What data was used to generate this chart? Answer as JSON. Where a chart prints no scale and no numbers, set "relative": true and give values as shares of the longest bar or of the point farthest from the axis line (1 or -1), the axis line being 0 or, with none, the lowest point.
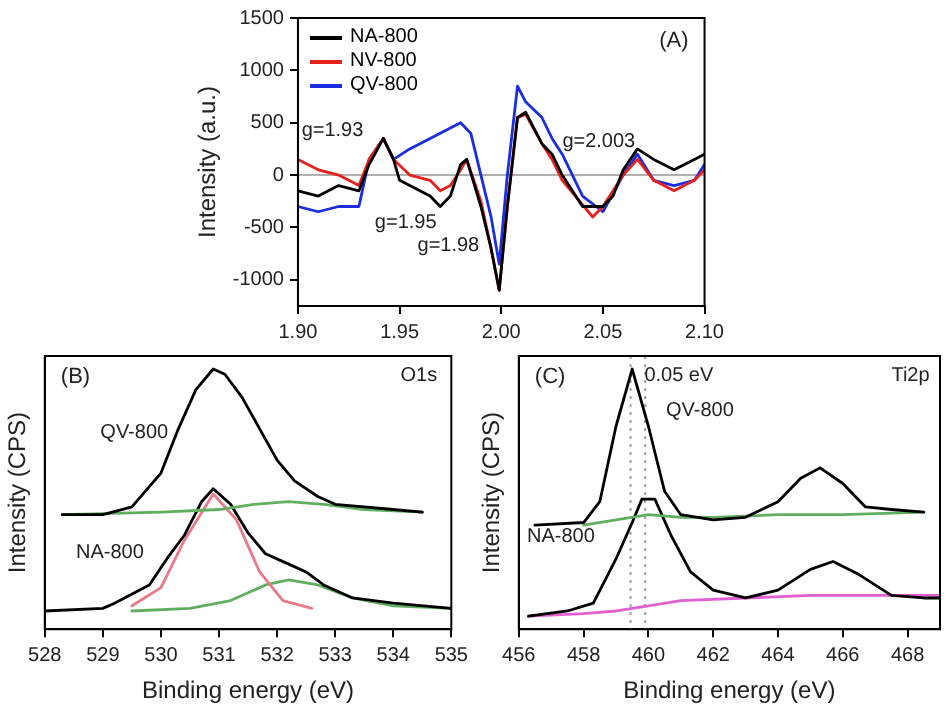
{
  "chart_data": [
    {
      "type": "line",
      "title": "(A)",
      "ylabel": "Intensity (a.u.)",
      "xlim": [
        1.9,
        2.1
      ],
      "xticks": [
        {
          "value": 1.9,
          "label": "1.90"
        },
        1.95,
        {
          "value": 2.0,
          "label": "2.00"
        },
        2.05,
        {
          "value": 2.1,
          "label": "2.10"
        }
      ],
      "ylim": [
        -1250,
        1500
      ],
      "yticks": [
        -1000,
        -500,
        0,
        500,
        1000,
        1500
      ],
      "legend": "top left",
      "grid": false,
      "marker": "none",
      "line_style": "solid",
      "ref_lines": [
        {
          "axis": "y",
          "value": 0,
          "color": "#b0b0b0"
        }
      ],
      "annotations": [
        "g=1.93",
        "g=1.95",
        "g=1.98",
        "g=2.003"
      ],
      "series": [
        {
          "name": "NA-800",
          "color": "#000000",
          "x": [
            1.9,
            1.91,
            1.92,
            1.93,
            1.935,
            1.942,
            1.947,
            1.95,
            1.955,
            1.96,
            1.965,
            1.97,
            1.975,
            1.98,
            1.983,
            1.99,
            1.995,
            1.999,
            2.003,
            2.008,
            2.012,
            2.02,
            2.025,
            2.03,
            2.04,
            2.05,
            2.055,
            2.06,
            2.067,
            2.075,
            2.085,
            2.095,
            2.1
          ],
          "values": [
            -150,
            -200,
            -100,
            -150,
            100,
            350,
            150,
            -50,
            -100,
            -150,
            -200,
            -300,
            -200,
            100,
            150,
            -300,
            -700,
            -1100,
            -300,
            550,
            600,
            300,
            200,
            0,
            -300,
            -300,
            -200,
            50,
            250,
            150,
            50,
            150,
            200
          ]
        },
        {
          "name": "NV-800",
          "color": "#e8201e",
          "x": [
            1.9,
            1.91,
            1.92,
            1.93,
            1.935,
            1.942,
            1.947,
            1.955,
            1.965,
            1.97,
            1.975,
            1.98,
            1.983,
            1.99,
            1.995,
            1.999,
            2.003,
            2.008,
            2.012,
            2.02,
            2.025,
            2.03,
            2.045,
            2.05,
            2.06,
            2.067,
            2.075,
            2.085,
            2.095,
            2.1
          ],
          "values": [
            150,
            50,
            0,
            -100,
            150,
            350,
            150,
            0,
            -50,
            -150,
            -100,
            50,
            150,
            -250,
            -700,
            -1100,
            -300,
            550,
            580,
            300,
            150,
            -50,
            -400,
            -300,
            0,
            150,
            -50,
            -150,
            -50,
            50
          ]
        },
        {
          "name": "QV-800",
          "color": "#1a2ee0",
          "x": [
            1.9,
            1.91,
            1.92,
            1.93,
            1.935,
            1.942,
            1.947,
            1.955,
            1.965,
            1.975,
            1.98,
            1.985,
            1.99,
            1.995,
            1.999,
            2.003,
            2.008,
            2.012,
            2.02,
            2.025,
            2.03,
            2.04,
            2.05,
            2.06,
            2.067,
            2.075,
            2.085,
            2.095,
            2.1
          ],
          "values": [
            -300,
            -350,
            -300,
            -300,
            150,
            350,
            150,
            250,
            350,
            450,
            500,
            400,
            0,
            -400,
            -850,
            0,
            850,
            700,
            550,
            350,
            200,
            -200,
            -350,
            0,
            200,
            -50,
            -100,
            -50,
            100
          ]
        }
      ]
    },
    {
      "type": "line",
      "title": "(B)",
      "xlabel": "Binding energy (eV)",
      "ylabel": "Intensity (CPS)",
      "relative": true,
      "tick_labels": "x",
      "xlim": [
        528,
        535
      ],
      "xticks": [
        528,
        529,
        530,
        531,
        532,
        533,
        534,
        535
      ],
      "legend": false,
      "grid": false,
      "marker": "none",
      "annotations": [
        "O1s",
        "QV-800",
        "NA-800"
      ],
      "series": [
        {
          "color": "#000000",
          "x": [
            528.3,
            529,
            529.5,
            530,
            530.3,
            530.6,
            530.9,
            531.1,
            531.4,
            531.7,
            532,
            532.3,
            532.7,
            533,
            534,
            534.5
          ],
          "values": [
            0.44,
            0.44,
            0.47,
            0.6,
            0.77,
            0.92,
            1.0,
            0.98,
            0.89,
            0.77,
            0.65,
            0.57,
            0.51,
            0.48,
            0.46,
            0.45
          ]
        },
        {
          "color": "#5faf5f",
          "x": [
            528.3,
            530,
            531,
            531.6,
            532.2,
            532.8,
            533.5,
            534.5
          ],
          "values": [
            0.44,
            0.45,
            0.46,
            0.48,
            0.49,
            0.48,
            0.46,
            0.45
          ]
        },
        {
          "color": "#000000",
          "x": [
            528,
            529,
            529.2,
            529.8,
            530.1,
            530.4,
            530.7,
            530.9,
            531.2,
            531.5,
            531.8,
            532.2,
            532.5,
            532.8,
            533.3,
            534,
            535
          ],
          "values": [
            0.07,
            0.08,
            0.1,
            0.17,
            0.27,
            0.36,
            0.49,
            0.54,
            0.48,
            0.37,
            0.29,
            0.25,
            0.22,
            0.17,
            0.12,
            0.1,
            0.08
          ]
        },
        {
          "color": "#e87a8a",
          "x": [
            529.5,
            530,
            530.4,
            530.9,
            531.3,
            531.7,
            532.1,
            532.6
          ],
          "values": [
            0.09,
            0.16,
            0.34,
            0.52,
            0.42,
            0.22,
            0.11,
            0.08
          ]
        },
        {
          "color": "#5faf5f",
          "x": [
            529.5,
            530.5,
            531.2,
            531.8,
            532.2,
            532.7,
            533.3,
            534,
            535
          ],
          "values": [
            0.07,
            0.08,
            0.11,
            0.17,
            0.19,
            0.17,
            0.12,
            0.09,
            0.08
          ]
        }
      ]
    },
    {
      "type": "line",
      "title": "(C)",
      "xlabel": "Binding energy (eV)",
      "ylabel": "Intensity (CPS)",
      "relative": true,
      "tick_labels": "x",
      "xlim": [
        456,
        469
      ],
      "xticks": [
        456,
        458,
        460,
        462,
        464,
        466,
        468
      ],
      "legend": false,
      "grid": false,
      "marker": "none",
      "ref_lines": [
        {
          "axis": "x",
          "value": 459.45,
          "color": "#a0a0a0",
          "line_style": "dotted"
        },
        {
          "axis": "x",
          "value": 459.9,
          "color": "#a0a0a0",
          "line_style": "dotted"
        }
      ],
      "annotations": [
        "Ti2p",
        "0.05 eV",
        "QV-800",
        "NA-800"
      ],
      "series": [
        {
          "color": "#000000",
          "x": [
            456.5,
            458,
            458.5,
            459,
            459.5,
            460,
            460.5,
            461,
            462,
            463,
            464,
            464.7,
            465.3,
            466,
            466.7,
            467.5,
            468.5
          ],
          "values": [
            0.4,
            0.41,
            0.49,
            0.78,
            1.0,
            0.78,
            0.53,
            0.44,
            0.42,
            0.43,
            0.49,
            0.58,
            0.62,
            0.56,
            0.47,
            0.46,
            0.45
          ]
        },
        {
          "color": "#5faf5f",
          "x": [
            458,
            459,
            460,
            461,
            462,
            464,
            466,
            468.5
          ],
          "values": [
            0.4,
            0.42,
            0.44,
            0.43,
            0.43,
            0.44,
            0.44,
            0.45
          ]
        },
        {
          "color": "#000000",
          "x": [
            456.3,
            457.5,
            458.3,
            459,
            459.5,
            459.8,
            460.2,
            460.7,
            461.3,
            462,
            463,
            464,
            465,
            465.7,
            466.5,
            467.5,
            468.5,
            469
          ],
          "values": [
            0.05,
            0.07,
            0.1,
            0.27,
            0.41,
            0.5,
            0.5,
            0.36,
            0.22,
            0.15,
            0.12,
            0.15,
            0.23,
            0.26,
            0.21,
            0.13,
            0.12,
            0.12
          ]
        },
        {
          "color": "#e060d0",
          "x": [
            456.3,
            458,
            459,
            460,
            461,
            463,
            465,
            467,
            469
          ],
          "values": [
            0.05,
            0.06,
            0.07,
            0.09,
            0.11,
            0.12,
            0.13,
            0.13,
            0.13
          ]
        }
      ]
    }
  ]
}
